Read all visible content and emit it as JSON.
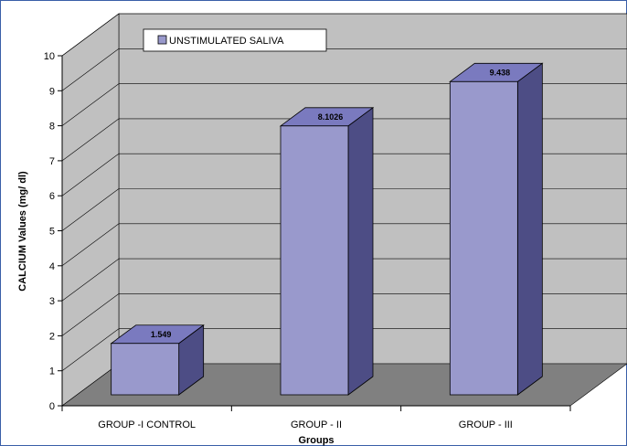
{
  "chart_data": {
    "type": "bar",
    "style": "3d-column",
    "title": "",
    "xlabel": "Groups",
    "ylabel": "CALCIUM Values (mg/ dl)",
    "ylim": [
      0,
      10
    ],
    "yticks": [
      0,
      1,
      2,
      3,
      4,
      5,
      6,
      7,
      8,
      9,
      10
    ],
    "grid": true,
    "legend_position": "top-left",
    "categories": [
      "GROUP -I  CONTROL",
      "GROUP - II",
      "GROUP - III"
    ],
    "series": [
      {
        "name": "UNSTIMULATED SALIVA",
        "values": [
          1.549,
          8.1026,
          9.438
        ],
        "labels": [
          "1.549",
          "8.1026",
          "9.438"
        ]
      }
    ],
    "colors": {
      "bar_front": "#9999cc",
      "bar_side": "#4d4d85",
      "bar_top": "#7a7abf",
      "back_wall": "#c0c0c0",
      "floor": "#808080",
      "frame_border": "#3a5fa8"
    }
  }
}
